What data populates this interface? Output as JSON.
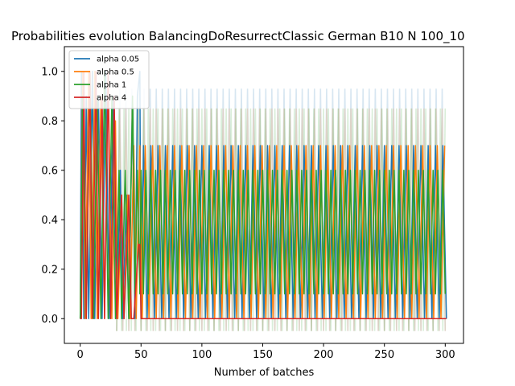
{
  "chart_data": {
    "type": "line",
    "title": "Probabilities evolution BalancingDoResurrectClassic German B10 N 100_10",
    "xlabel": "Number of batches",
    "ylabel": "",
    "xlim": [
      -13,
      315
    ],
    "ylim": [
      -0.1,
      1.1
    ],
    "x_ticks": [
      0,
      50,
      100,
      150,
      200,
      250,
      300
    ],
    "y_ticks": [
      0.0,
      0.2,
      0.4,
      0.6,
      0.8,
      1.0
    ],
    "x_tick_labels": [
      "0",
      "50",
      "100",
      "150",
      "200",
      "250",
      "300"
    ],
    "y_tick_labels": [
      "0.0",
      "0.2",
      "0.4",
      "0.6",
      "0.8",
      "1.0"
    ],
    "grid": false,
    "legend_position": "top-left",
    "x_max": 301,
    "series": [
      {
        "name": "alpha 0.05",
        "color": "#1f77b4",
        "pattern": {
          "period": 6,
          "phase": 0,
          "low": 0.0,
          "high": 0.7,
          "start": 52
        },
        "early": [
          [
            0,
            0.0
          ],
          [
            1,
            1.0
          ],
          [
            3,
            0.0
          ],
          [
            5,
            0.9
          ],
          [
            7,
            0.0
          ],
          [
            10,
            1.0
          ],
          [
            12,
            0.0
          ],
          [
            15,
            0.9
          ],
          [
            18,
            0.0
          ],
          [
            21,
            1.0
          ],
          [
            24,
            0.0
          ],
          [
            27,
            0.9
          ],
          [
            30,
            0.0
          ],
          [
            33,
            0.6
          ],
          [
            35,
            0.0
          ],
          [
            38,
            0.5
          ],
          [
            40,
            0.0
          ],
          [
            43,
            0.9
          ],
          [
            45,
            0.0
          ],
          [
            47,
            0.9
          ],
          [
            49,
            1.0
          ],
          [
            50,
            0.0
          ]
        ]
      },
      {
        "name": "alpha 0.5",
        "color": "#ff7f0e",
        "pattern": {
          "period": 6,
          "phase": 3,
          "low": 0.0,
          "high": 0.7,
          "start": 52
        },
        "early": [
          [
            0,
            0.0
          ],
          [
            2,
            1.0
          ],
          [
            4,
            0.0
          ],
          [
            7,
            1.0
          ],
          [
            9,
            0.0
          ],
          [
            12,
            1.0
          ],
          [
            14,
            0.0
          ],
          [
            17,
            0.9
          ],
          [
            20,
            0.0
          ],
          [
            23,
            1.0
          ],
          [
            26,
            0.0
          ],
          [
            29,
            0.8
          ],
          [
            31,
            0.0
          ],
          [
            34,
            0.5
          ],
          [
            36,
            0.0
          ],
          [
            39,
            0.5
          ],
          [
            41,
            0.0
          ],
          [
            44,
            0.7
          ],
          [
            46,
            0.0
          ],
          [
            49,
            0.7
          ],
          [
            51,
            0.0
          ]
        ]
      },
      {
        "name": "alpha 1",
        "color": "#2ca02c",
        "pattern": {
          "period": 4,
          "phase": 0,
          "low": 0.1,
          "high": 0.6,
          "start": 50
        },
        "early": [
          [
            0,
            0.0
          ],
          [
            2,
            0.9
          ],
          [
            5,
            0.0
          ],
          [
            8,
            1.0
          ],
          [
            11,
            0.0
          ],
          [
            14,
            0.9
          ],
          [
            17,
            0.0
          ],
          [
            20,
            1.0
          ],
          [
            23,
            0.0
          ],
          [
            26,
            0.9
          ],
          [
            29,
            0.0
          ],
          [
            32,
            0.6
          ],
          [
            34,
            0.0
          ],
          [
            37,
            0.6
          ],
          [
            40,
            0.0
          ],
          [
            43,
            0.9
          ],
          [
            45,
            0.1
          ],
          [
            47,
            0.6
          ],
          [
            49,
            0.1
          ]
        ]
      },
      {
        "name": "alpha 4",
        "color": "#d62728",
        "pattern": null,
        "early": [
          [
            0,
            0.0
          ],
          [
            1,
            0.0
          ],
          [
            3,
            1.0
          ],
          [
            5,
            0.0
          ],
          [
            8,
            1.0
          ],
          [
            10,
            0.0
          ],
          [
            13,
            1.0
          ],
          [
            15,
            0.0
          ],
          [
            18,
            0.9
          ],
          [
            20,
            0.0
          ],
          [
            23,
            1.0
          ],
          [
            25,
            0.0
          ],
          [
            28,
            0.9
          ],
          [
            30,
            0.0
          ],
          [
            34,
            0.5
          ],
          [
            36,
            0.0
          ],
          [
            40,
            0.5
          ],
          [
            42,
            0.0
          ],
          [
            44,
            0.0
          ],
          [
            48,
            0.3
          ],
          [
            49,
            0.3
          ],
          [
            50,
            0.0
          ],
          [
            301,
            0.0
          ]
        ]
      }
    ],
    "band_series": [
      {
        "color": "#1f77b4",
        "period": 5,
        "phase": 0,
        "low": -0.05,
        "high": 0.93,
        "start": 30
      },
      {
        "color": "#ff7f0e",
        "period": 5,
        "phase": 2.5,
        "low": -0.05,
        "high": 0.85,
        "start": 30
      },
      {
        "color": "#2ca02c",
        "period": 4,
        "phase": 1,
        "low": -0.05,
        "high": 0.85,
        "start": 30
      }
    ]
  }
}
